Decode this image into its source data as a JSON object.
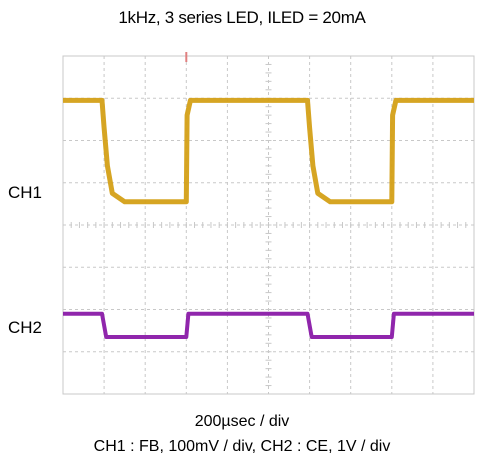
{
  "title": "1kHz, 3 series LED, ILED = 20mA",
  "channel_labels": {
    "ch1": "CH1",
    "ch2": "CH2"
  },
  "footer": {
    "timebase": "200µsec / div",
    "scales": "CH1 : FB, 100mV / div,    CH2 : CE, 1V / div"
  },
  "colors": {
    "ch1": "#d4a017",
    "ch2": "#8a1aa8",
    "grid": "#c8c8c8",
    "trigger_marker": "#e08080"
  },
  "chart_data": {
    "type": "line",
    "title": "1kHz, 3 series LED, ILED = 20mA",
    "xlabel": "200µsec / div",
    "x_divisions": 10,
    "y_divisions": 8,
    "grid": true,
    "series": [
      {
        "name": "CH1",
        "channel": 1,
        "x_div": [
          0,
          0.95,
          1.0,
          1.08,
          1.2,
          1.5,
          3.0,
          3.02,
          3.1,
          5.95,
          6.0,
          6.08,
          6.2,
          6.5,
          8.0,
          8.02,
          8.1,
          10
        ],
        "y_div": [
          6.95,
          6.95,
          6.3,
          5.4,
          4.75,
          4.55,
          4.55,
          6.6,
          6.95,
          6.95,
          6.3,
          5.4,
          4.75,
          4.55,
          4.55,
          6.6,
          6.95,
          6.95
        ]
      },
      {
        "name": "CH2",
        "channel": 2,
        "x_div": [
          0,
          0.95,
          1.05,
          3.0,
          3.05,
          5.95,
          6.05,
          8.0,
          8.05,
          10
        ],
        "y_div": [
          1.9,
          1.9,
          1.35,
          1.35,
          1.9,
          1.9,
          1.35,
          1.35,
          1.9,
          1.9
        ]
      }
    ]
  }
}
